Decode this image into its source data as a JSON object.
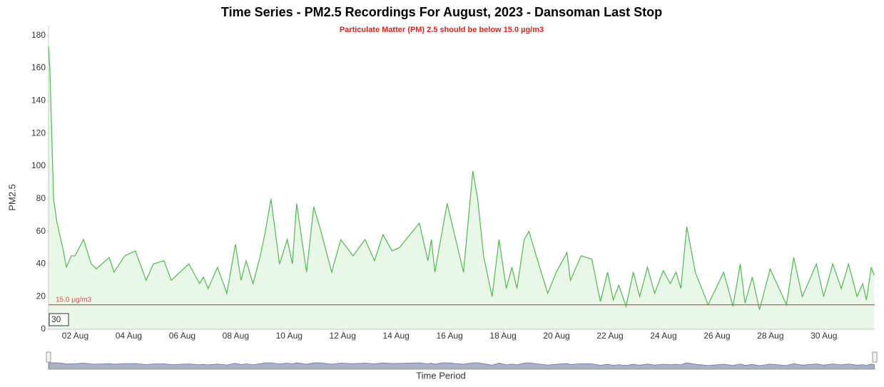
{
  "chart_data": {
    "type": "area",
    "title": "Time Series - PM2.5 Recordings For August, 2023 - Dansoman Last Stop",
    "subtitle": "Particulate Matter (PM) 2.5 should be below 15.0 µg/m3",
    "y_axis_label": "PM2.5",
    "x_axis_label": "Time Period",
    "range_input": 30,
    "x": [
      1.0,
      1.05,
      1.19,
      1.32,
      1.53,
      1.67,
      1.85,
      1.99,
      2.31,
      2.6,
      2.79,
      3.27,
      3.45,
      3.85,
      4.25,
      4.65,
      4.92,
      5.32,
      5.59,
      6.25,
      6.65,
      6.79,
      6.97,
      7.32,
      7.67,
      7.99,
      8.2,
      8.39,
      8.65,
      8.92,
      9.11,
      9.32,
      9.64,
      9.93,
      10.12,
      10.28,
      10.65,
      10.92,
      11.19,
      11.59,
      11.93,
      12.39,
      12.84,
      13.19,
      13.51,
      13.85,
      14.12,
      14.87,
      15.19,
      15.32,
      15.45,
      15.72,
      15.91,
      16.52,
      16.87,
      17.05,
      17.27,
      17.59,
      17.85,
      18.12,
      18.33,
      18.52,
      18.79,
      18.97,
      19.24,
      19.67,
      19.99,
      20.39,
      20.52,
      20.92,
      21.32,
      21.64,
      21.91,
      22.12,
      22.33,
      22.6,
      22.87,
      23.11,
      23.4,
      23.67,
      23.99,
      24.25,
      24.47,
      24.65,
      24.87,
      25.19,
      25.67,
      26.25,
      26.6,
      26.87,
      27.05,
      27.32,
      27.59,
      27.99,
      28.6,
      28.87,
      29.19,
      29.72,
      29.99,
      30.33,
      30.65,
      30.92,
      31.24,
      31.45,
      31.59,
      31.77,
      31.88
    ],
    "series": [
      {
        "name": "PM2.5",
        "color": "#4cbb4c",
        "values": [
          173,
          160,
          80,
          65,
          50,
          38,
          45,
          45,
          55,
          40,
          37,
          44,
          35,
          45,
          48,
          30,
          40,
          42,
          30,
          40,
          28,
          32,
          25,
          38,
          22,
          52,
          30,
          42,
          28,
          45,
          60,
          80,
          40,
          55,
          40,
          77,
          35,
          75,
          60,
          35,
          55,
          45,
          55,
          42,
          58,
          48,
          50,
          65,
          42,
          55,
          35,
          60,
          77,
          35,
          97,
          80,
          45,
          20,
          55,
          25,
          38,
          25,
          55,
          60,
          45,
          22,
          35,
          47,
          30,
          45,
          43,
          17,
          35,
          18,
          27,
          14,
          35,
          20,
          38,
          22,
          36,
          28,
          35,
          25,
          63,
          35,
          15,
          35,
          14,
          40,
          16,
          32,
          12,
          37,
          15,
          44,
          20,
          40,
          20,
          40,
          25,
          40,
          20,
          28,
          18,
          38,
          33
        ]
      }
    ],
    "xlim": [
      1,
      31.9
    ],
    "xticks": [
      {
        "value": 2,
        "label": "02 Aug"
      },
      {
        "value": 4,
        "label": "04 Aug"
      },
      {
        "value": 6,
        "label": "06 Aug"
      },
      {
        "value": 8,
        "label": "08 Aug"
      },
      {
        "value": 10,
        "label": "10 Aug"
      },
      {
        "value": 12,
        "label": "12 Aug"
      },
      {
        "value": 14,
        "label": "14 Aug"
      },
      {
        "value": 16,
        "label": "16 Aug"
      },
      {
        "value": 18,
        "label": "18 Aug"
      },
      {
        "value": 20,
        "label": "20 Aug"
      },
      {
        "value": 22,
        "label": "22 Aug"
      },
      {
        "value": 24,
        "label": "24 Aug"
      },
      {
        "value": 26,
        "label": "26 Aug"
      },
      {
        "value": 28,
        "label": "28 Aug"
      },
      {
        "value": 30,
        "label": "30 Aug"
      }
    ],
    "ylim": [
      0,
      186
    ],
    "yticks": [
      0,
      20,
      40,
      60,
      80,
      100,
      120,
      140,
      160,
      180
    ],
    "plot_line": {
      "value": 15,
      "label": "15.0 µg/m3",
      "color": "#d9534f"
    }
  }
}
